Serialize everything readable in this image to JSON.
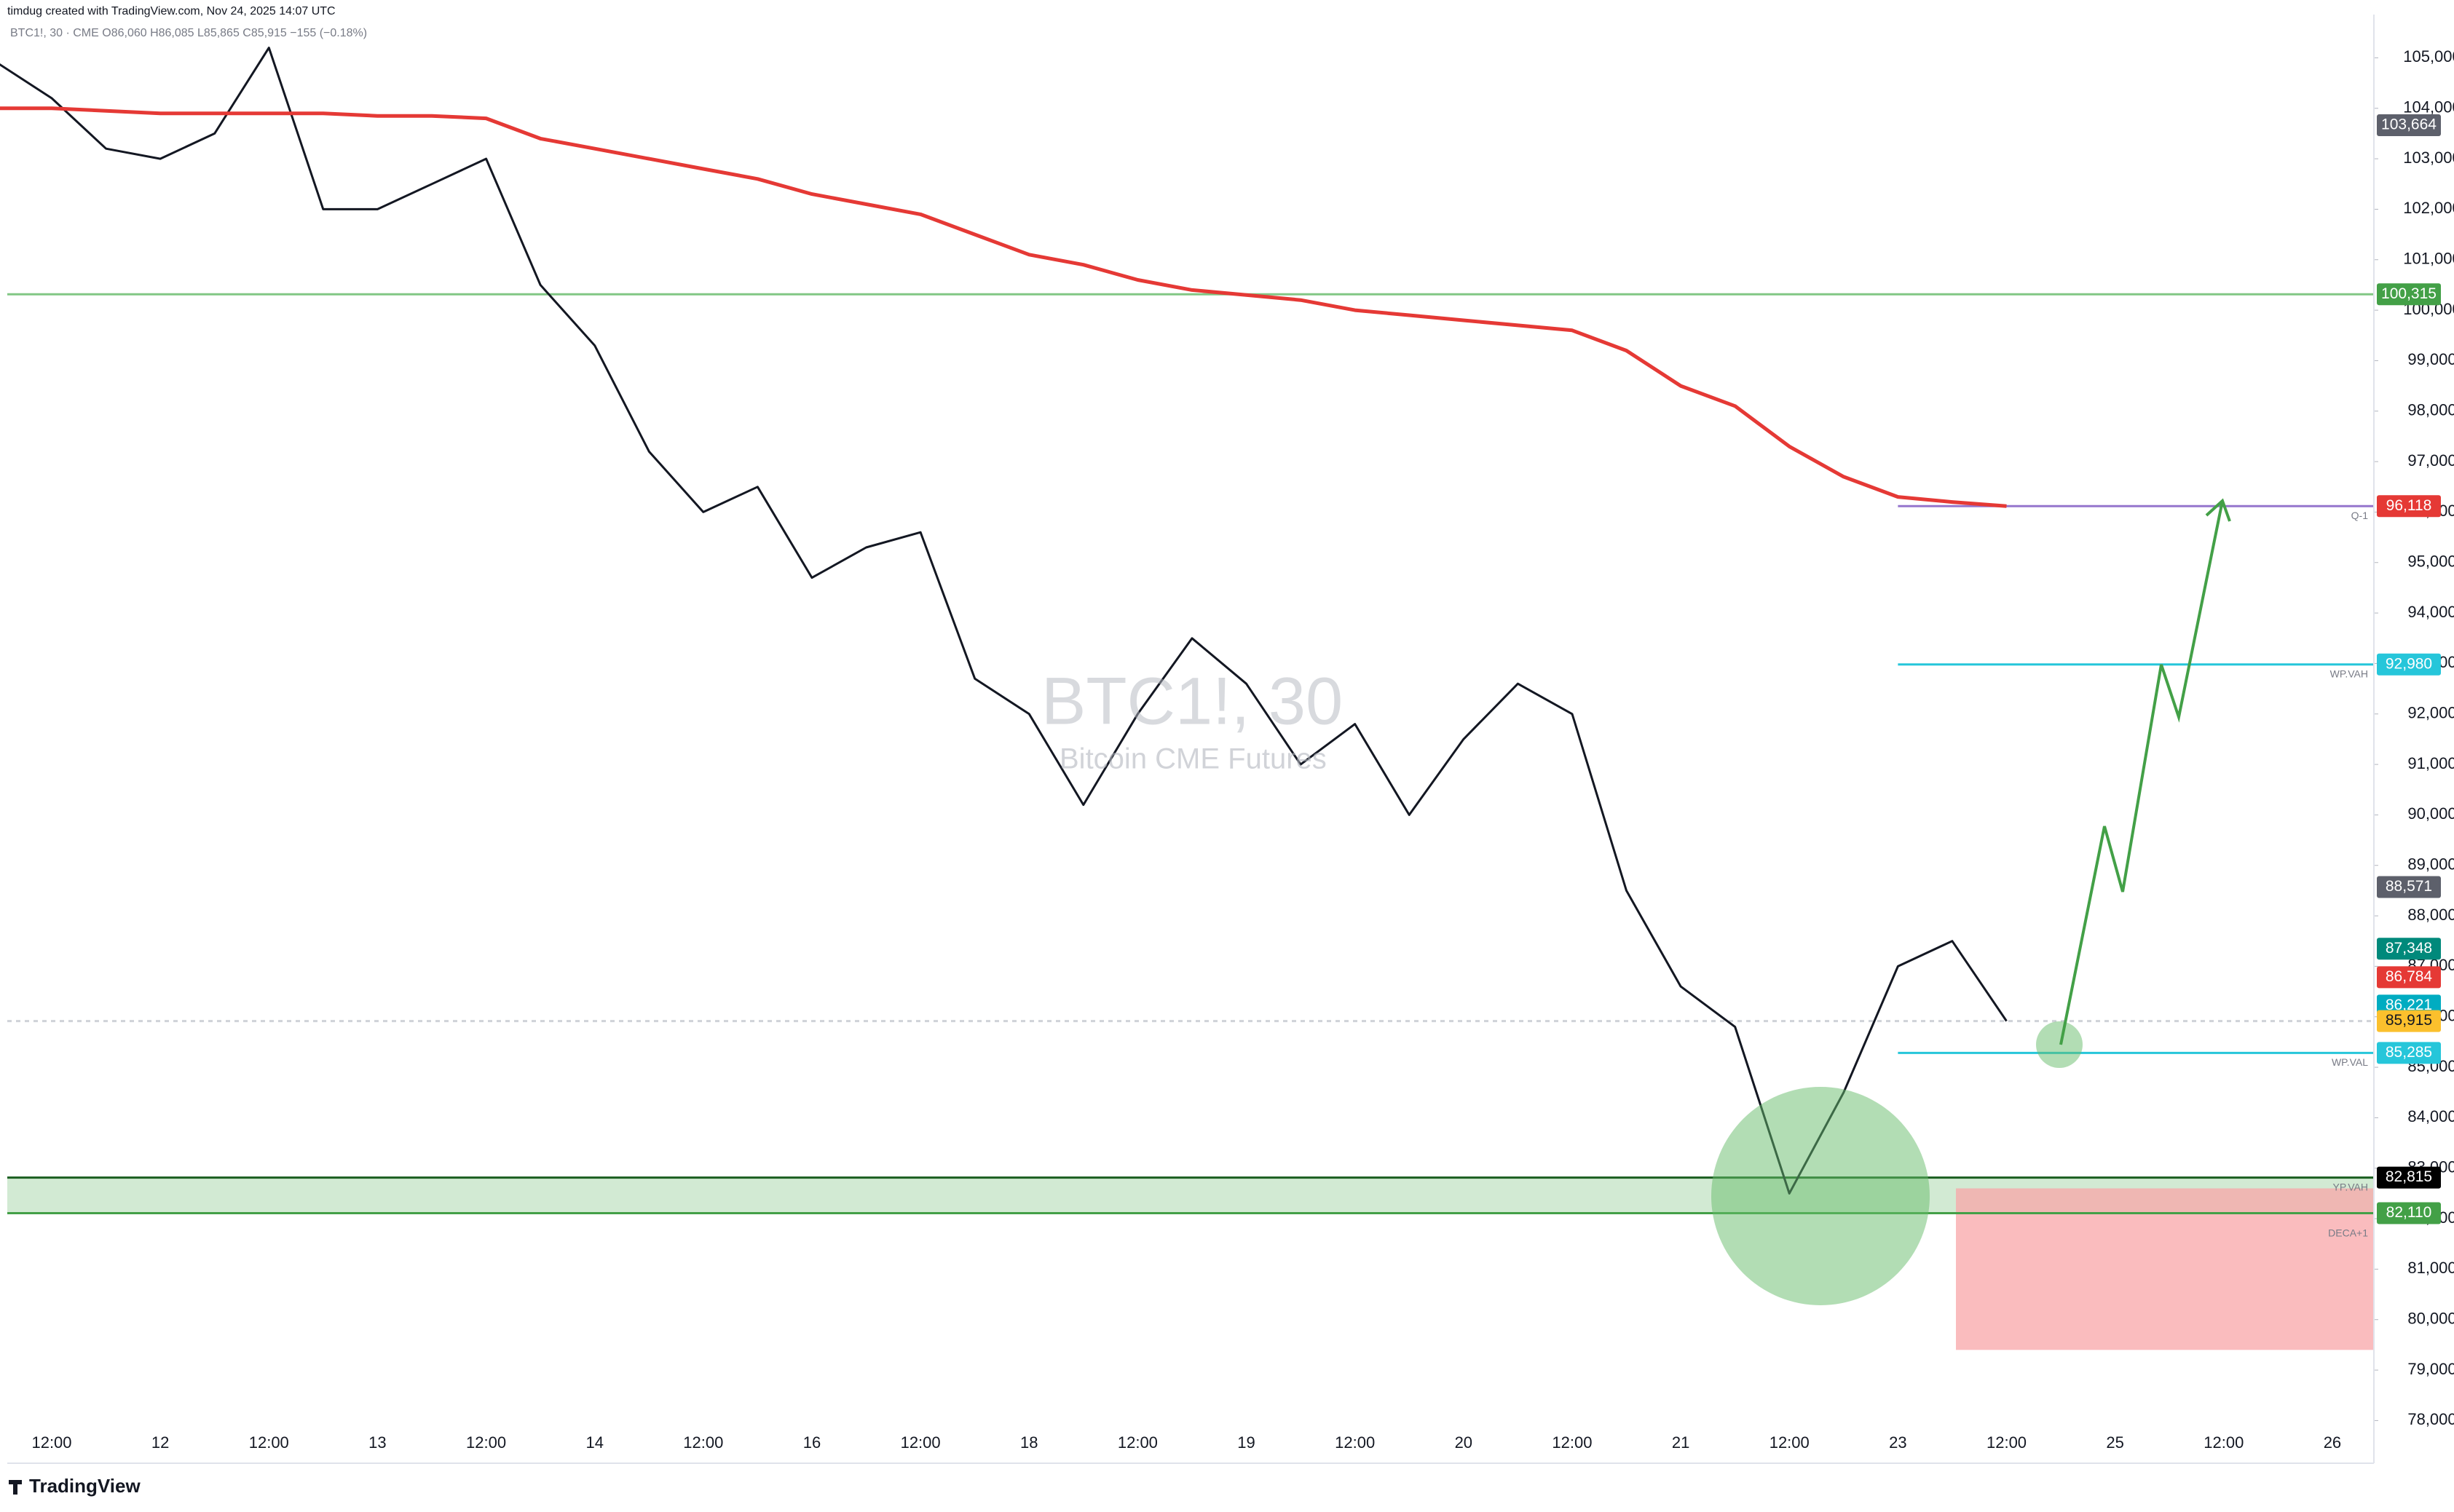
{
  "chart_data": {
    "type": "line",
    "header": "timdug created with TradingView.com, Nov 24, 2025 14:07 UTC",
    "legend_line": "BTC1!, 30 · CME  O86,060 H86,085 L85,865 C85,915 −155 (−0.18%)",
    "watermark_title": "BTC1!, 30",
    "watermark_subtitle": "Bitcoin CME Futures",
    "brand": "TradingView",
    "categories": [
      null,
      "12:00",
      null,
      "12",
      null,
      "12:00",
      null,
      "13",
      null,
      "12:00",
      null,
      "14",
      null,
      "12:00",
      null,
      "16",
      null,
      "12:00",
      null,
      "18",
      null,
      "12:00",
      null,
      "19",
      null,
      "12:00",
      null,
      "20",
      null,
      "12:00",
      null,
      "21",
      null,
      "12:00",
      null,
      "23",
      null,
      "12:00",
      null,
      "25",
      null,
      "12:00",
      null,
      "26"
    ],
    "series": [
      {
        "name": "BTC1!",
        "color": "#131722",
        "values": [
          104900,
          104200,
          103200,
          103000,
          103500,
          105200,
          102000,
          102000,
          102500,
          103000,
          100500,
          99300,
          97200,
          96000,
          96500,
          94700,
          95300,
          95600,
          92700,
          92000,
          90200,
          92000,
          93500,
          92600,
          91000,
          91800,
          90000,
          91500,
          92600,
          92000,
          88500,
          86600,
          85800,
          82500,
          84500,
          87000,
          87500,
          85915,
          null,
          null,
          null,
          null,
          null,
          null
        ]
      },
      {
        "name": "MA",
        "color": "#e53935",
        "values": [
          104000,
          104000,
          103950,
          103900,
          103900,
          103900,
          103900,
          103850,
          103850,
          103800,
          103400,
          103200,
          103000,
          102800,
          102600,
          102300,
          102100,
          101900,
          101500,
          101100,
          100900,
          100600,
          100400,
          100300,
          100200,
          100000,
          99900,
          99800,
          99700,
          99600,
          99200,
          98500,
          98100,
          97300,
          96700,
          96300,
          96200,
          96118,
          null,
          null,
          null,
          null,
          null,
          null
        ]
      }
    ],
    "ylim": [
      77876,
      105713
    ],
    "yticks": [
      {
        "value": 78000,
        "label": "78,000"
      },
      {
        "value": 79000,
        "label": "79,000"
      },
      {
        "value": 80000,
        "label": "80,000"
      },
      {
        "value": 81000,
        "label": "81,000"
      },
      {
        "value": 82000,
        "label": "82,000"
      },
      {
        "value": 83000,
        "label": "83,000"
      },
      {
        "value": 84000,
        "label": "84,000"
      },
      {
        "value": 85000,
        "label": "85,000"
      },
      {
        "value": 86000,
        "label": "86,000"
      },
      {
        "value": 87000,
        "label": "87,000"
      },
      {
        "value": 88000,
        "label": "88,000"
      },
      {
        "value": 89000,
        "label": "89,000"
      },
      {
        "value": 90000,
        "label": "90,000"
      },
      {
        "value": 91000,
        "label": "91,000"
      },
      {
        "value": 92000,
        "label": "92,000"
      },
      {
        "value": 93000,
        "label": "93,000"
      },
      {
        "value": 94000,
        "label": "94,000"
      },
      {
        "value": 95000,
        "label": "95,000"
      },
      {
        "value": 96000,
        "label": "96,000"
      },
      {
        "value": 97000,
        "label": "97,000"
      },
      {
        "value": 98000,
        "label": "98,000"
      },
      {
        "value": 99000,
        "label": "99,000"
      },
      {
        "value": 100000,
        "label": "100,000"
      },
      {
        "value": 101000,
        "label": "101,000"
      },
      {
        "value": 102000,
        "label": "102,000"
      },
      {
        "value": 103000,
        "label": "103,000"
      },
      {
        "value": 104000,
        "label": "104,000"
      },
      {
        "value": 105000,
        "label": "105,000"
      }
    ],
    "price_labels": [
      {
        "value": 103664,
        "label": "103,664",
        "color": "#5d606b"
      },
      {
        "value": 100315,
        "label": "100,315",
        "color": "#43a047",
        "line_color": "#81c784",
        "start": 0
      },
      {
        "value": 96118,
        "label": "96,118",
        "color": "#e53935",
        "line_color": "#9575cd",
        "start": 35
      },
      {
        "value": 92980,
        "label": "92,980",
        "color": "#26c6da",
        "line_color": "#26c6da",
        "start": 35
      },
      {
        "value": 88571,
        "label": "88,571",
        "color": "#5d606b"
      },
      {
        "value": 87348,
        "label": "87,348",
        "color": "#00897b"
      },
      {
        "value": 86784,
        "label": "86,784",
        "color": "#e53935"
      },
      {
        "value": 86221,
        "label": "86,221",
        "color": "#00acc1"
      },
      {
        "value": 85915,
        "label": "85,915",
        "color": "#fbc02d",
        "line_color": "#cfd2d8",
        "start": 0,
        "dash": true
      },
      {
        "value": 85285,
        "label": "85,285",
        "color": "#26c6da",
        "line_color": "#26c6da",
        "start": 35
      },
      {
        "value": 82815,
        "label": "82,815",
        "color": "#000000",
        "line_color": "#1b5e20",
        "start": 0
      },
      {
        "value": 82110,
        "label": "82,110",
        "color": "#43a047",
        "line_color": "#43a047",
        "start": 0
      }
    ],
    "zone": [
      82110,
      82815
    ],
    "risk_box": [
      79400,
      82600
    ],
    "annotations": [
      {
        "text": "Q-1",
        "value": 96118
      },
      {
        "text": "WP.VAH",
        "value": 92980
      },
      {
        "text": "WP.VAL",
        "value": 85285
      },
      {
        "text": "YP.VAH",
        "value": 82815
      },
      {
        "text": "DECA+1",
        "value": 81900
      }
    ]
  }
}
